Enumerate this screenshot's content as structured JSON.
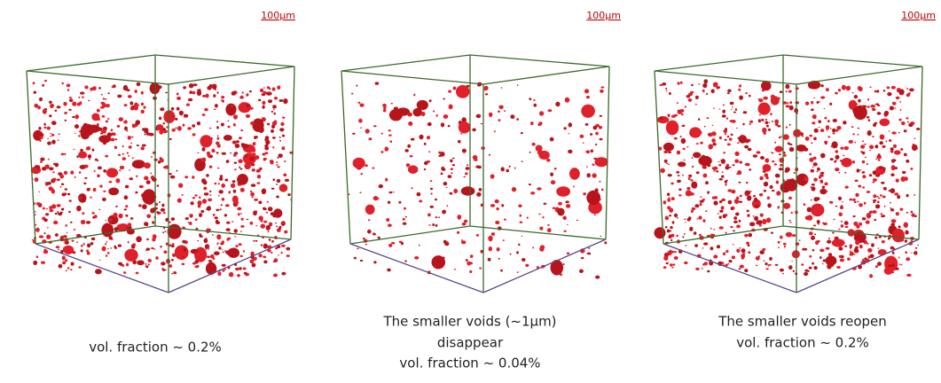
{
  "panels": [
    {
      "scale_bar": "100µm",
      "caption": [
        "vol. fraction ~ 0.2%"
      ]
    },
    {
      "scale_bar": "100µm",
      "caption": [
        "The smaller voids (~1µm)",
        "disappear",
        "vol. fraction ~ 0.04%"
      ]
    },
    {
      "scale_bar": "100µm",
      "caption": [
        "The smaller voids reopen",
        "vol. fraction ~ 0.2%"
      ]
    }
  ]
}
